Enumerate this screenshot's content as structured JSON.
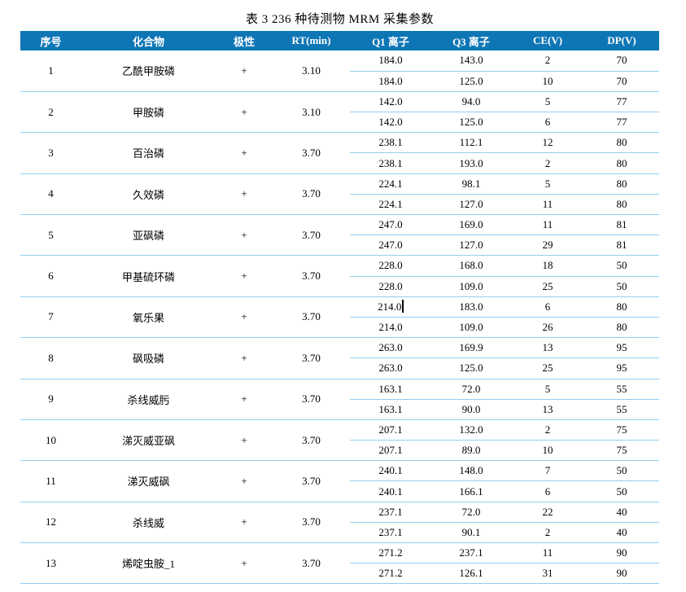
{
  "title": "表 3 236 种待测物 MRM 采集参数",
  "colors": {
    "header_bg": "#0f76b6",
    "header_text": "#ffffff",
    "divider_line": "#92cef2",
    "body_text": "#000000"
  },
  "cursor": {
    "visible": true,
    "location": "after Q1 value of compound 7 first transition"
  },
  "table": {
    "headers": [
      "序号",
      "化合物",
      "极性",
      "RT(min)",
      "Q1 离子",
      "Q3 离子",
      "CE(V)",
      "DP(V)"
    ],
    "rows": [
      {
        "index": "1",
        "compound": "乙酰甲胺磷",
        "polarity": "+",
        "rt": "3.10",
        "transitions": [
          {
            "q1": "184.0",
            "q3": "143.0",
            "ce": "2",
            "dp": "70"
          },
          {
            "q1": "184.0",
            "q3": "125.0",
            "ce": "10",
            "dp": "70"
          }
        ]
      },
      {
        "index": "2",
        "compound": "甲胺磷",
        "polarity": "+",
        "rt": "3.10",
        "transitions": [
          {
            "q1": "142.0",
            "q3": "94.0",
            "ce": "5",
            "dp": "77"
          },
          {
            "q1": "142.0",
            "q3": "125.0",
            "ce": "6",
            "dp": "77"
          }
        ]
      },
      {
        "index": "3",
        "compound": "百治磷",
        "polarity": "+",
        "rt": "3.70",
        "transitions": [
          {
            "q1": "238.1",
            "q3": "112.1",
            "ce": "12",
            "dp": "80"
          },
          {
            "q1": "238.1",
            "q3": "193.0",
            "ce": "2",
            "dp": "80"
          }
        ]
      },
      {
        "index": "4",
        "compound": "久效磷",
        "polarity": "+",
        "rt": "3.70",
        "transitions": [
          {
            "q1": "224.1",
            "q3": "98.1",
            "ce": "5",
            "dp": "80"
          },
          {
            "q1": "224.1",
            "q3": "127.0",
            "ce": "11",
            "dp": "80"
          }
        ]
      },
      {
        "index": "5",
        "compound": "亚砜磷",
        "polarity": "+",
        "rt": "3.70",
        "transitions": [
          {
            "q1": "247.0",
            "q3": "169.0",
            "ce": "11",
            "dp": "81"
          },
          {
            "q1": "247.0",
            "q3": "127.0",
            "ce": "29",
            "dp": "81"
          }
        ]
      },
      {
        "index": "6",
        "compound": "甲基硫环磷",
        "polarity": "+",
        "rt": "3.70",
        "transitions": [
          {
            "q1": "228.0",
            "q3": "168.0",
            "ce": "18",
            "dp": "50"
          },
          {
            "q1": "228.0",
            "q3": "109.0",
            "ce": "25",
            "dp": "50"
          }
        ]
      },
      {
        "index": "7",
        "compound": "氧乐果",
        "polarity": "+",
        "rt": "3.70",
        "transitions": [
          {
            "q1": "214.0",
            "q3": "183.0",
            "ce": "6",
            "dp": "80",
            "cursor_after_q1": true
          },
          {
            "q1": "214.0",
            "q3": "109.0",
            "ce": "26",
            "dp": "80"
          }
        ]
      },
      {
        "index": "8",
        "compound": "砜吸磷",
        "polarity": "+",
        "rt": "3.70",
        "transitions": [
          {
            "q1": "263.0",
            "q3": "169.9",
            "ce": "13",
            "dp": "95"
          },
          {
            "q1": "263.0",
            "q3": "125.0",
            "ce": "25",
            "dp": "95"
          }
        ]
      },
      {
        "index": "9",
        "compound": "杀线威肟",
        "polarity": "+",
        "rt": "3.70",
        "transitions": [
          {
            "q1": "163.1",
            "q3": "72.0",
            "ce": "5",
            "dp": "55"
          },
          {
            "q1": "163.1",
            "q3": "90.0",
            "ce": "13",
            "dp": "55"
          }
        ]
      },
      {
        "index": "10",
        "compound": "涕灭威亚砜",
        "polarity": "+",
        "rt": "3.70",
        "transitions": [
          {
            "q1": "207.1",
            "q3": "132.0",
            "ce": "2",
            "dp": "75"
          },
          {
            "q1": "207.1",
            "q3": "89.0",
            "ce": "10",
            "dp": "75"
          }
        ]
      },
      {
        "index": "11",
        "compound": "涕灭威砜",
        "polarity": "+",
        "rt": "3.70",
        "transitions": [
          {
            "q1": "240.1",
            "q3": "148.0",
            "ce": "7",
            "dp": "50"
          },
          {
            "q1": "240.1",
            "q3": "166.1",
            "ce": "6",
            "dp": "50"
          }
        ]
      },
      {
        "index": "12",
        "compound": "杀线威",
        "polarity": "+",
        "rt": "3.70",
        "transitions": [
          {
            "q1": "237.1",
            "q3": "72.0",
            "ce": "22",
            "dp": "40"
          },
          {
            "q1": "237.1",
            "q3": "90.1",
            "ce": "2",
            "dp": "40"
          }
        ]
      },
      {
        "index": "13",
        "compound": "烯啶虫胺_1",
        "polarity": "+",
        "rt": "3.70",
        "transitions": [
          {
            "q1": "271.2",
            "q3": "237.1",
            "ce": "11",
            "dp": "90"
          },
          {
            "q1": "271.2",
            "q3": "126.1",
            "ce": "31",
            "dp": "90"
          }
        ]
      }
    ]
  }
}
